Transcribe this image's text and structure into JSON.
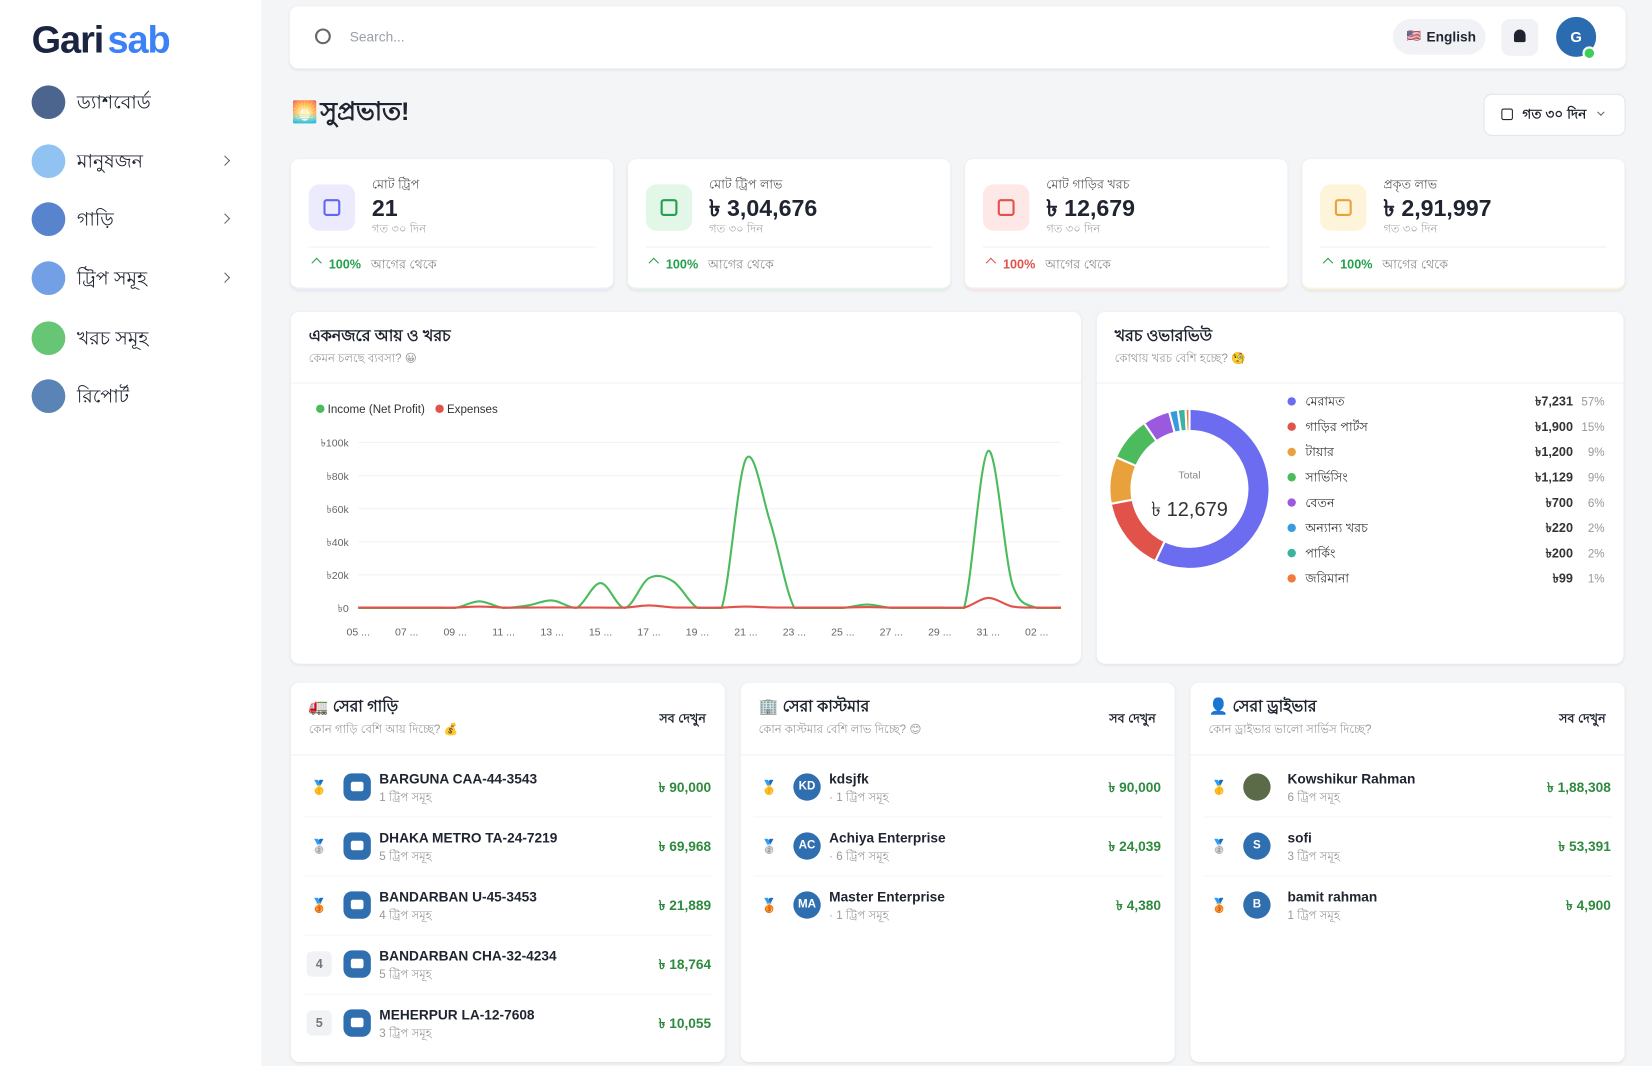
{
  "sidebar": {
    "logo": [
      "Gari",
      "sab"
    ],
    "menu": [
      {
        "label": "ড্যাশবোর্ড",
        "chevron": false
      },
      {
        "label": "মানুষজন",
        "chevron": true
      },
      {
        "label": "গাড়ি",
        "chevron": true
      },
      {
        "label": "ট্রিপ সমূহ",
        "chevron": true
      },
      {
        "label": "খরচ সমূহ",
        "chevron": false
      },
      {
        "label": "রিপোর্ট",
        "chevron": false
      }
    ]
  },
  "header": {
    "search_placeholder": "Search...",
    "language_flag": "🇺🇸",
    "language": "English",
    "avatar": "G"
  },
  "greeting": {
    "emoji": "🌅",
    "text": "সুপ্রভাত!"
  },
  "period": "গত ৩০ দিন",
  "stats": [
    {
      "label": "মোট ট্রিপ",
      "value": "21",
      "sub": "গত ৩০ দিন",
      "change": "100%",
      "change_text": "আগের থেকে",
      "color": "#6366f1",
      "bg": "#ecebfd",
      "up": "#22a04b"
    },
    {
      "label": "মোট ট্রিপ লাভ",
      "value": "৳ 3,04,676",
      "sub": "গত ৩০ দিন",
      "change": "100%",
      "change_text": "আগের থেকে",
      "color": "#22a04b",
      "bg": "#e3f7e8",
      "up": "#22a04b"
    },
    {
      "label": "মোট গাড়ির খরচ",
      "value": "৳ 12,679",
      "sub": "গত ৩০ দিন",
      "change": "100%",
      "change_text": "আগের থেকে",
      "color": "#e0524a",
      "bg": "#fde8e7",
      "up": "#e0524a"
    },
    {
      "label": "প্রকৃত লাভ",
      "value": "৳ 2,91,997",
      "sub": "গত ৩০ দিন",
      "change": "100%",
      "change_text": "আগের থেকে",
      "color": "#e9a23b",
      "bg": "#fdf4d9",
      "up": "#22a04b"
    }
  ],
  "income_chart": {
    "type": "line",
    "title": "একনজরে আয় ও খরচ",
    "subtitle": "কেমন চলছে ব্যবসা? 😀",
    "categories": [
      "05 ...",
      null,
      "07 ...",
      null,
      "09 ...",
      null,
      "11 ...",
      null,
      "13 ...",
      null,
      "15 ...",
      null,
      "17 ...",
      null,
      "19 ...",
      null,
      "21 ...",
      null,
      "23 ...",
      null,
      "25 ...",
      null,
      "27 ...",
      null,
      "29 ...",
      null,
      "31 ...",
      null,
      "02 ...",
      null
    ],
    "series": [
      {
        "name": "Income (Net Profit)",
        "color": "#4cbb5e",
        "values": [
          0,
          0,
          0,
          0,
          0,
          4000,
          0,
          1500,
          4500,
          0,
          15000,
          0,
          18000,
          16000,
          0,
          0,
          90000,
          52000,
          0,
          0,
          0,
          2000,
          0,
          0,
          0,
          0,
          95000,
          14000,
          0,
          0
        ]
      },
      {
        "name": "Expenses",
        "color": "#e0524a",
        "values": [
          200,
          200,
          200,
          200,
          200,
          800,
          200,
          200,
          300,
          200,
          200,
          200,
          1500,
          300,
          200,
          200,
          800,
          300,
          200,
          200,
          200,
          500,
          200,
          200,
          200,
          200,
          6000,
          800,
          200,
          200
        ]
      }
    ],
    "ylim": [
      0,
      100000
    ],
    "yticks": [
      {
        "value": 0,
        "label": "৳0"
      },
      {
        "value": 20000,
        "label": "৳20k"
      },
      {
        "value": 40000,
        "label": "৳40k"
      },
      {
        "value": 60000,
        "label": "৳60k"
      },
      {
        "value": 80000,
        "label": "৳80k"
      },
      {
        "value": 100000,
        "label": "৳100k"
      }
    ],
    "legend": "top-left"
  },
  "expense_chart": {
    "type": "pie",
    "title": "খরচ ওভারভিউ",
    "subtitle": "কোথায় খরচ বেশি হচ্ছে? 🧐",
    "center_label": "Total",
    "center_value": "৳ 12,679",
    "categories": [
      "মেরামত",
      "গাড়ির পার্টস",
      "টায়ার",
      "সার্ভিসিং",
      "বেতন",
      "অন্যান্য খরচ",
      "পার্কিং",
      "জরিমানা"
    ],
    "values": [
      7231,
      1900,
      1200,
      1129,
      700,
      220,
      200,
      99
    ],
    "value_labels": [
      "৳7,231",
      "৳1,900",
      "৳1,200",
      "৳1,129",
      "৳700",
      "৳220",
      "৳200",
      "৳99"
    ],
    "percent_labels": [
      "57%",
      "15%",
      "9%",
      "9%",
      "6%",
      "2%",
      "2%",
      "1%"
    ],
    "colors": [
      "#6c6cf0",
      "#e0524a",
      "#e9a23b",
      "#4cbb5e",
      "#9b59e0",
      "#3a9bdc",
      "#3bb3a0",
      "#f07b3a"
    ]
  },
  "top_vehicles": {
    "title": "🚛 সেরা গাড়ি",
    "subtitle": "কোন গাড়ি বেশি আয় দিচ্ছে? 💰",
    "link": "সব দেখুন",
    "items": [
      {
        "rank": "🥇",
        "name": "BARGUNA CAA-44-3543",
        "trips": "1 ট্রিপ সমূহ",
        "amount": "৳ 90,000"
      },
      {
        "rank": "🥈",
        "name": "DHAKA METRO TA-24-7219",
        "trips": "5 ট্রিপ সমূহ",
        "amount": "৳ 69,968"
      },
      {
        "rank": "🥉",
        "name": "BANDARBAN U-45-3453",
        "trips": "4 ট্রিপ সমূহ",
        "amount": "৳ 21,889"
      },
      {
        "rank": "4",
        "name": "BANDARBAN CHA-32-4234",
        "trips": "5 ট্রিপ সমূহ",
        "amount": "৳ 18,764"
      },
      {
        "rank": "5",
        "name": "MEHERPUR LA-12-7608",
        "trips": "3 ট্রিপ সমূহ",
        "amount": "৳ 10,055"
      }
    ]
  },
  "top_customers": {
    "title": "🏢 সেরা কাস্টমার",
    "subtitle": "কোন কাস্টমার বেশি লাভ দিচ্ছে? 😊",
    "link": "সব দেখুন",
    "items": [
      {
        "rank": "🥇",
        "initials": "KD",
        "name": "kdsjfk",
        "trips": "· 1 ট্রিপ সমূহ",
        "amount": "৳ 90,000"
      },
      {
        "rank": "🥈",
        "initials": "AC",
        "name": "Achiya Enterprise",
        "trips": "· 6 ট্রিপ সমূহ",
        "amount": "৳ 24,039"
      },
      {
        "rank": "🥉",
        "initials": "MA",
        "name": "Master Enterprise",
        "trips": "· 1 ট্রিপ সমূহ",
        "amount": "৳ 4,380"
      }
    ]
  },
  "top_drivers": {
    "title": "👤 সেরা ড্রাইভার",
    "subtitle": "কোন ড্রাইভার ভালো সার্ভিস দিচ্ছে?",
    "link": "সব দেখুন",
    "items": [
      {
        "rank": "🥇",
        "initials": null,
        "name": "Kowshikur Rahman",
        "trips": "6 ট্রিপ সমূহ",
        "amount": "৳ 1,88,308"
      },
      {
        "rank": "🥈",
        "initials": "S",
        "name": "sofi",
        "trips": "3 ট্রিপ সমূহ",
        "amount": "৳ 53,391"
      },
      {
        "rank": "🥉",
        "initials": "B",
        "name": "bamit rahman",
        "trips": "1 ট্রিপ সমূহ",
        "amount": "৳ 4,900"
      }
    ]
  }
}
